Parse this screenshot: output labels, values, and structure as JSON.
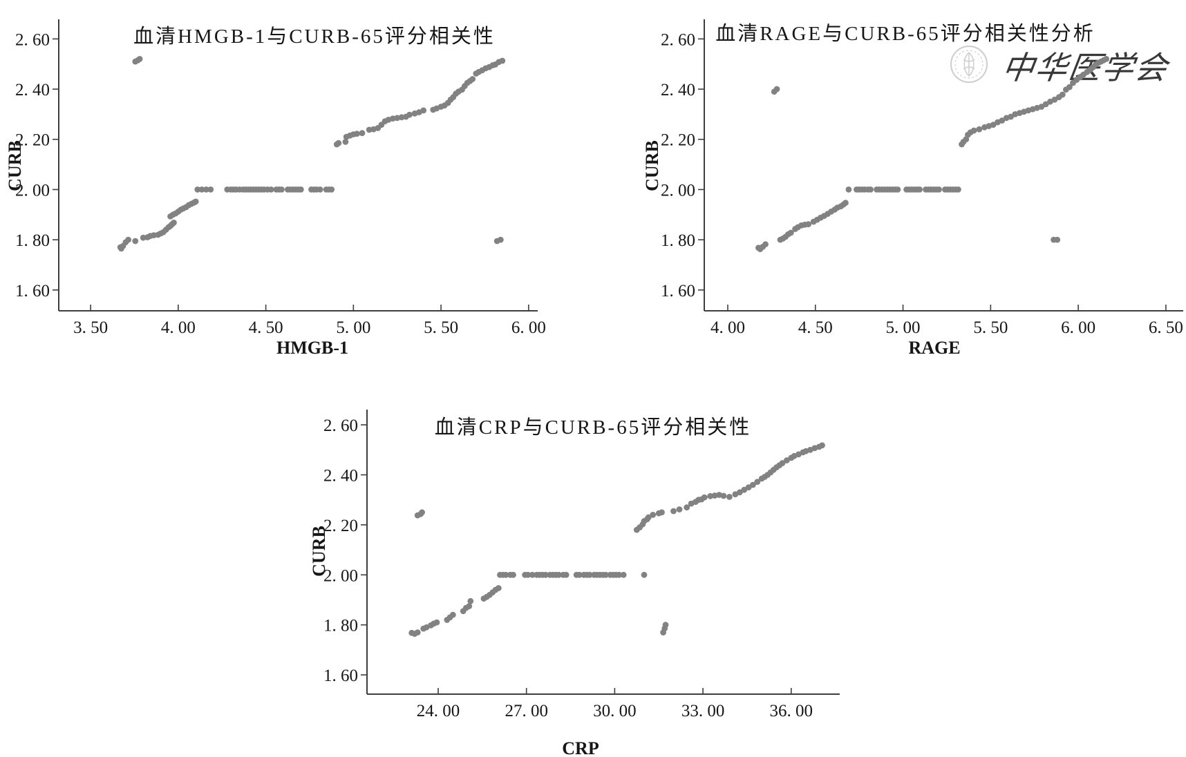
{
  "page": {
    "background": "#ffffff"
  },
  "style": {
    "dot_color": "#828282",
    "axis_color": "#3d3d3d",
    "text_color": "#161616",
    "dot_radius": 4.4,
    "tick_font_size": 25,
    "title_font_size": 29,
    "axis_label_font_size": 26
  },
  "watermark": {
    "name": "chinese-medical-association-watermark",
    "seal_icon": "caduceus-seal-icon",
    "text": "中华医学会",
    "color": "#c8c8c8"
  },
  "chart_data": [
    {
      "id": "hmgb1",
      "type": "scatter",
      "title": "血清HMGB-1与CURB-65评分相关性",
      "xlabel": "HMGB-1",
      "ylabel": "CURB",
      "grid": false,
      "legend": "none",
      "xlim": [
        3.318,
        6.052
      ],
      "ylim": [
        1.517,
        2.678
      ],
      "xticks": [
        3.5,
        4.0,
        4.5,
        5.0,
        5.5,
        6.0
      ],
      "xtick_labels": [
        "3. 50",
        "4. 00",
        "4. 50",
        "5. 00",
        "5. 50",
        "6. 00"
      ],
      "yticks": [
        1.6,
        1.8,
        2.0,
        2.2,
        2.4,
        2.6
      ],
      "ytick_labels": [
        "1. 60",
        "1. 80",
        "2. 00",
        "2. 20",
        "2. 40",
        "2. 60"
      ],
      "points": [
        [
          3.67,
          1.77
        ],
        [
          3.675,
          1.765
        ],
        [
          3.685,
          1.775
        ],
        [
          3.7,
          1.79
        ],
        [
          3.715,
          1.8
        ],
        [
          3.755,
          1.795
        ],
        [
          3.8,
          1.808
        ],
        [
          3.825,
          1.81
        ],
        [
          3.84,
          1.815
        ],
        [
          3.86,
          1.818
        ],
        [
          3.885,
          1.82
        ],
        [
          3.9,
          1.825
        ],
        [
          3.915,
          1.83
        ],
        [
          3.93,
          1.84
        ],
        [
          3.945,
          1.85
        ],
        [
          3.955,
          1.855
        ],
        [
          3.965,
          1.862
        ],
        [
          3.975,
          1.868
        ],
        [
          3.955,
          1.893
        ],
        [
          3.97,
          1.9
        ],
        [
          3.985,
          1.905
        ],
        [
          4.0,
          1.912
        ],
        [
          4.015,
          1.92
        ],
        [
          4.03,
          1.925
        ],
        [
          4.045,
          1.93
        ],
        [
          4.06,
          1.938
        ],
        [
          4.075,
          1.943
        ],
        [
          4.09,
          1.948
        ],
        [
          4.1,
          1.952
        ],
        [
          4.11,
          2.0
        ],
        [
          4.135,
          2.0
        ],
        [
          4.16,
          2.0
        ],
        [
          4.185,
          2.0
        ],
        [
          4.28,
          2.0
        ],
        [
          4.3,
          2.0
        ],
        [
          4.315,
          2.0
        ],
        [
          4.33,
          2.0
        ],
        [
          4.35,
          2.0
        ],
        [
          4.37,
          2.0
        ],
        [
          4.385,
          2.0
        ],
        [
          4.4,
          2.0
        ],
        [
          4.415,
          2.0
        ],
        [
          4.43,
          2.0
        ],
        [
          4.445,
          2.0
        ],
        [
          4.46,
          2.0
        ],
        [
          4.475,
          2.0
        ],
        [
          4.49,
          2.0
        ],
        [
          4.51,
          2.0
        ],
        [
          4.53,
          2.0
        ],
        [
          4.56,
          2.0
        ],
        [
          4.575,
          2.0
        ],
        [
          4.59,
          2.0
        ],
        [
          4.625,
          2.0
        ],
        [
          4.64,
          2.0
        ],
        [
          4.655,
          2.0
        ],
        [
          4.67,
          2.0
        ],
        [
          4.685,
          2.0
        ],
        [
          4.7,
          2.0
        ],
        [
          4.76,
          2.0
        ],
        [
          4.775,
          2.0
        ],
        [
          4.79,
          2.0
        ],
        [
          4.81,
          2.0
        ],
        [
          4.845,
          2.0
        ],
        [
          4.86,
          2.0
        ],
        [
          4.875,
          2.0
        ],
        [
          4.905,
          2.18
        ],
        [
          4.915,
          2.185
        ],
        [
          4.955,
          2.19
        ],
        [
          4.96,
          2.21
        ],
        [
          4.98,
          2.215
        ],
        [
          5.0,
          2.22
        ],
        [
          5.02,
          2.222
        ],
        [
          5.05,
          2.225
        ],
        [
          5.09,
          2.238
        ],
        [
          5.115,
          2.24
        ],
        [
          5.14,
          2.245
        ],
        [
          5.16,
          2.258
        ],
        [
          5.18,
          2.272
        ],
        [
          5.2,
          2.278
        ],
        [
          5.225,
          2.283
        ],
        [
          5.25,
          2.285
        ],
        [
          5.275,
          2.288
        ],
        [
          5.3,
          2.29
        ],
        [
          5.32,
          2.298
        ],
        [
          5.35,
          2.303
        ],
        [
          5.375,
          2.308
        ],
        [
          5.4,
          2.315
        ],
        [
          5.455,
          2.318
        ],
        [
          5.475,
          2.323
        ],
        [
          5.5,
          2.33
        ],
        [
          5.52,
          2.335
        ],
        [
          5.54,
          2.345
        ],
        [
          5.555,
          2.358
        ],
        [
          5.57,
          2.368
        ],
        [
          5.585,
          2.382
        ],
        [
          5.6,
          2.39
        ],
        [
          5.62,
          2.398
        ],
        [
          5.635,
          2.412
        ],
        [
          5.65,
          2.425
        ],
        [
          5.665,
          2.432
        ],
        [
          5.68,
          2.44
        ],
        [
          5.7,
          2.462
        ],
        [
          5.715,
          2.468
        ],
        [
          5.735,
          2.475
        ],
        [
          5.755,
          2.483
        ],
        [
          5.775,
          2.488
        ],
        [
          5.795,
          2.495
        ],
        [
          5.81,
          2.498
        ],
        [
          5.83,
          2.508
        ],
        [
          5.85,
          2.513
        ],
        [
          3.755,
          2.51
        ],
        [
          3.77,
          2.515
        ],
        [
          3.78,
          2.52
        ],
        [
          5.82,
          1.795
        ],
        [
          5.84,
          1.8
        ]
      ]
    },
    {
      "id": "rage",
      "type": "scatter",
      "title": "血清RAGE与CURB-65评分相关性分析",
      "xlabel": "RAGE",
      "ylabel": "CURB",
      "grid": false,
      "legend": "none",
      "xlim": [
        3.866,
        6.599
      ],
      "ylim": [
        1.517,
        2.678
      ],
      "xticks": [
        4.0,
        4.5,
        5.0,
        5.5,
        6.0,
        6.5
      ],
      "xtick_labels": [
        "4. 00",
        "4. 50",
        "5. 00",
        "5. 50",
        "6. 00",
        "6. 50"
      ],
      "yticks": [
        1.6,
        1.8,
        2.0,
        2.2,
        2.4,
        2.6
      ],
      "ytick_labels": [
        "1. 60",
        "1. 80",
        "2. 00",
        "2. 20",
        "2. 40",
        "2. 60"
      ],
      "points": [
        [
          4.175,
          1.768
        ],
        [
          4.185,
          1.763
        ],
        [
          4.2,
          1.772
        ],
        [
          4.215,
          1.782
        ],
        [
          4.3,
          1.8
        ],
        [
          4.315,
          1.805
        ],
        [
          4.33,
          1.812
        ],
        [
          4.345,
          1.822
        ],
        [
          4.36,
          1.828
        ],
        [
          4.385,
          1.843
        ],
        [
          4.4,
          1.85
        ],
        [
          4.42,
          1.857
        ],
        [
          4.44,
          1.86
        ],
        [
          4.46,
          1.862
        ],
        [
          4.49,
          1.872
        ],
        [
          4.51,
          1.88
        ],
        [
          4.53,
          1.888
        ],
        [
          4.55,
          1.895
        ],
        [
          4.57,
          1.903
        ],
        [
          4.59,
          1.912
        ],
        [
          4.61,
          1.92
        ],
        [
          4.625,
          1.928
        ],
        [
          4.645,
          1.933
        ],
        [
          4.66,
          1.94
        ],
        [
          4.672,
          1.947
        ],
        [
          4.69,
          2.0
        ],
        [
          4.735,
          2.0
        ],
        [
          4.75,
          2.0
        ],
        [
          4.765,
          2.0
        ],
        [
          4.78,
          2.0
        ],
        [
          4.8,
          2.0
        ],
        [
          4.815,
          2.0
        ],
        [
          4.85,
          2.0
        ],
        [
          4.865,
          2.0
        ],
        [
          4.88,
          2.0
        ],
        [
          4.895,
          2.0
        ],
        [
          4.91,
          2.0
        ],
        [
          4.925,
          2.0
        ],
        [
          4.94,
          2.0
        ],
        [
          4.955,
          2.0
        ],
        [
          4.97,
          2.0
        ],
        [
          5.02,
          2.0
        ],
        [
          5.035,
          2.0
        ],
        [
          5.05,
          2.0
        ],
        [
          5.065,
          2.0
        ],
        [
          5.08,
          2.0
        ],
        [
          5.095,
          2.0
        ],
        [
          5.13,
          2.0
        ],
        [
          5.145,
          2.0
        ],
        [
          5.16,
          2.0
        ],
        [
          5.175,
          2.0
        ],
        [
          5.19,
          2.0
        ],
        [
          5.205,
          2.0
        ],
        [
          5.24,
          2.0
        ],
        [
          5.255,
          2.0
        ],
        [
          5.27,
          2.0
        ],
        [
          5.285,
          2.0
        ],
        [
          5.3,
          2.0
        ],
        [
          5.315,
          2.0
        ],
        [
          5.335,
          2.18
        ],
        [
          5.345,
          2.19
        ],
        [
          5.36,
          2.2
        ],
        [
          5.37,
          2.218
        ],
        [
          5.385,
          2.228
        ],
        [
          5.405,
          2.235
        ],
        [
          5.435,
          2.24
        ],
        [
          5.465,
          2.248
        ],
        [
          5.49,
          2.253
        ],
        [
          5.515,
          2.258
        ],
        [
          5.54,
          2.268
        ],
        [
          5.565,
          2.275
        ],
        [
          5.59,
          2.285
        ],
        [
          5.615,
          2.29
        ],
        [
          5.64,
          2.3
        ],
        [
          5.665,
          2.305
        ],
        [
          5.69,
          2.31
        ],
        [
          5.715,
          2.315
        ],
        [
          5.74,
          2.32
        ],
        [
          5.765,
          2.325
        ],
        [
          5.79,
          2.33
        ],
        [
          5.815,
          2.34
        ],
        [
          5.84,
          2.35
        ],
        [
          5.865,
          2.358
        ],
        [
          5.89,
          2.368
        ],
        [
          5.91,
          2.378
        ],
        [
          5.93,
          2.398
        ],
        [
          5.95,
          2.408
        ],
        [
          5.97,
          2.425
        ],
        [
          5.99,
          2.437
        ],
        [
          6.01,
          2.447
        ],
        [
          6.03,
          2.458
        ],
        [
          6.05,
          2.468
        ],
        [
          6.07,
          2.478
        ],
        [
          6.085,
          2.488
        ],
        [
          6.1,
          2.498
        ],
        [
          6.115,
          2.505
        ],
        [
          6.13,
          2.51
        ],
        [
          6.145,
          2.515
        ],
        [
          6.16,
          2.52
        ],
        [
          4.265,
          2.39
        ],
        [
          4.28,
          2.4
        ],
        [
          5.86,
          1.8
        ],
        [
          5.88,
          1.8
        ]
      ]
    },
    {
      "id": "crp",
      "type": "scatter",
      "title": "血清CRP与CURB-65评分相关性",
      "xlabel": "CRP",
      "ylabel": "CURB",
      "grid": false,
      "legend": "none",
      "xlim": [
        21.58,
        37.65
      ],
      "ylim": [
        1.523,
        2.661
      ],
      "xticks": [
        24.0,
        27.0,
        30.0,
        33.0,
        36.0
      ],
      "xtick_labels": [
        "24. 00",
        "27. 00",
        "30. 00",
        "33. 00",
        "36. 00"
      ],
      "yticks": [
        1.6,
        1.8,
        2.0,
        2.2,
        2.4,
        2.6
      ],
      "ytick_labels": [
        "1. 60",
        "1. 80",
        "2. 00",
        "2. 20",
        "2. 40",
        "2. 60"
      ],
      "points": [
        [
          23.1,
          1.768
        ],
        [
          23.2,
          1.764
        ],
        [
          23.3,
          1.77
        ],
        [
          23.5,
          1.785
        ],
        [
          23.6,
          1.79
        ],
        [
          23.75,
          1.798
        ],
        [
          23.85,
          1.805
        ],
        [
          23.95,
          1.81
        ],
        [
          24.3,
          1.82
        ],
        [
          24.4,
          1.83
        ],
        [
          24.5,
          1.84
        ],
        [
          24.85,
          1.855
        ],
        [
          24.95,
          1.868
        ],
        [
          25.05,
          1.875
        ],
        [
          25.1,
          1.895
        ],
        [
          25.55,
          1.905
        ],
        [
          25.65,
          1.912
        ],
        [
          25.75,
          1.92
        ],
        [
          25.85,
          1.93
        ],
        [
          25.95,
          1.94
        ],
        [
          26.05,
          1.947
        ],
        [
          26.1,
          2.0
        ],
        [
          26.2,
          2.0
        ],
        [
          26.3,
          2.0
        ],
        [
          26.45,
          2.0
        ],
        [
          26.55,
          2.0
        ],
        [
          26.95,
          2.0
        ],
        [
          27.05,
          2.0
        ],
        [
          27.2,
          2.0
        ],
        [
          27.35,
          2.0
        ],
        [
          27.45,
          2.0
        ],
        [
          27.55,
          2.0
        ],
        [
          27.65,
          2.0
        ],
        [
          27.8,
          2.0
        ],
        [
          27.9,
          2.0
        ],
        [
          28.0,
          2.0
        ],
        [
          28.1,
          2.0
        ],
        [
          28.25,
          2.0
        ],
        [
          28.35,
          2.0
        ],
        [
          28.7,
          2.0
        ],
        [
          28.8,
          2.0
        ],
        [
          28.95,
          2.0
        ],
        [
          29.05,
          2.0
        ],
        [
          29.15,
          2.0
        ],
        [
          29.3,
          2.0
        ],
        [
          29.4,
          2.0
        ],
        [
          29.5,
          2.0
        ],
        [
          29.6,
          2.0
        ],
        [
          29.7,
          2.0
        ],
        [
          29.85,
          2.0
        ],
        [
          29.95,
          2.0
        ],
        [
          30.05,
          2.0
        ],
        [
          30.15,
          2.0
        ],
        [
          30.3,
          2.0
        ],
        [
          31.0,
          2.0
        ],
        [
          30.75,
          2.18
        ],
        [
          30.85,
          2.19
        ],
        [
          30.95,
          2.202
        ],
        [
          31.0,
          2.215
        ],
        [
          31.1,
          2.222
        ],
        [
          31.15,
          2.23
        ],
        [
          31.3,
          2.24
        ],
        [
          31.5,
          2.246
        ],
        [
          31.6,
          2.25
        ],
        [
          32.0,
          2.255
        ],
        [
          32.2,
          2.262
        ],
        [
          32.45,
          2.27
        ],
        [
          32.6,
          2.285
        ],
        [
          32.75,
          2.292
        ],
        [
          32.85,
          2.3
        ],
        [
          32.95,
          2.302
        ],
        [
          33.05,
          2.31
        ],
        [
          33.25,
          2.315
        ],
        [
          33.4,
          2.317
        ],
        [
          33.55,
          2.32
        ],
        [
          33.7,
          2.316
        ],
        [
          33.9,
          2.312
        ],
        [
          34.1,
          2.322
        ],
        [
          34.25,
          2.33
        ],
        [
          34.4,
          2.34
        ],
        [
          34.55,
          2.35
        ],
        [
          34.7,
          2.36
        ],
        [
          34.85,
          2.372
        ],
        [
          35.0,
          2.385
        ],
        [
          35.1,
          2.392
        ],
        [
          35.2,
          2.4
        ],
        [
          35.3,
          2.41
        ],
        [
          35.4,
          2.42
        ],
        [
          35.5,
          2.43
        ],
        [
          35.6,
          2.438
        ],
        [
          35.7,
          2.447
        ],
        [
          35.85,
          2.458
        ],
        [
          36.0,
          2.468
        ],
        [
          36.1,
          2.475
        ],
        [
          36.25,
          2.482
        ],
        [
          36.4,
          2.49
        ],
        [
          36.5,
          2.495
        ],
        [
          36.65,
          2.5
        ],
        [
          36.8,
          2.507
        ],
        [
          36.95,
          2.512
        ],
        [
          37.05,
          2.518
        ],
        [
          23.3,
          2.238
        ],
        [
          23.4,
          2.243
        ],
        [
          23.45,
          2.25
        ],
        [
          31.65,
          1.77
        ],
        [
          31.7,
          1.786
        ],
        [
          31.73,
          1.8
        ]
      ]
    }
  ]
}
